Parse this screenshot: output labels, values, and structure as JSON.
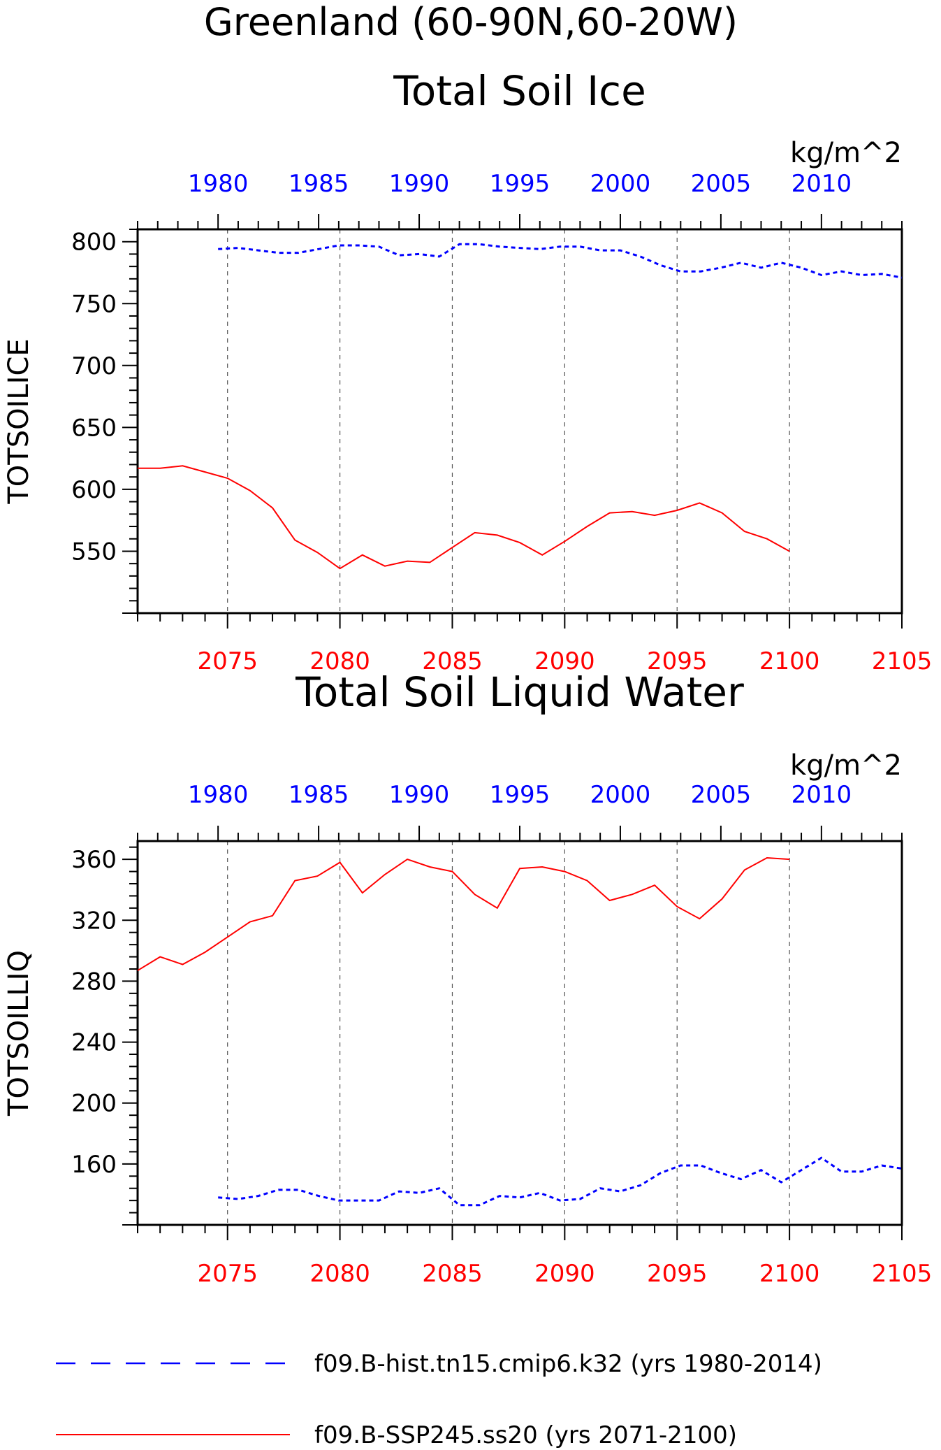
{
  "figure": {
    "title": "Greenland (60-90N,60-20W)",
    "legend": [
      {
        "label": "f09.B-hist.tn15.cmip6.k32 (yrs 1980-2014)",
        "color": "#0000ff",
        "style": "dashed"
      },
      {
        "label": "f09.B-SSP245.ss20 (yrs 2071-2100)",
        "color": "#ff0000",
        "style": "solid"
      }
    ]
  },
  "chart_data": [
    {
      "type": "line",
      "title": "Total Soil Ice",
      "units": "kg/m^2",
      "ylabel": "TOTSOILICE",
      "ylim": [
        500,
        810
      ],
      "yticks": [
        550,
        600,
        650,
        700,
        750,
        800
      ],
      "top_axis": {
        "color": "#0000ff",
        "range": [
          1976,
          2014
        ],
        "ticks": [
          1980,
          1985,
          1990,
          1995,
          2000,
          2005,
          2010
        ]
      },
      "bottom_axis": {
        "color": "#ff0000",
        "range": [
          2071,
          2105
        ],
        "ticks": [
          2075,
          2080,
          2085,
          2090,
          2095,
          2100,
          2105
        ]
      },
      "grid": "vertical dashed at bottom-axis ticks",
      "series": [
        {
          "name": "f09.B-hist.tn15.cmip6.k32 (yrs 1980-2014)",
          "color": "#0000ff",
          "style": "dashed",
          "axis": "top",
          "x": [
            1980,
            1981,
            1982,
            1983,
            1984,
            1985,
            1986,
            1987,
            1988,
            1989,
            1990,
            1991,
            1992,
            1993,
            1994,
            1995,
            1996,
            1997,
            1998,
            1999,
            2000,
            2001,
            2002,
            2003,
            2004,
            2005,
            2006,
            2007,
            2008,
            2009,
            2010,
            2011,
            2012,
            2013,
            2014
          ],
          "values": [
            794,
            795,
            793,
            791,
            791,
            794,
            797,
            797,
            796,
            789,
            790,
            788,
            798,
            798,
            796,
            795,
            794,
            796,
            796,
            793,
            793,
            788,
            781,
            776,
            776,
            779,
            783,
            779,
            783,
            779,
            773,
            776,
            773,
            774,
            771
          ]
        },
        {
          "name": "f09.B-SSP245.ss20 (yrs 2071-2100)",
          "color": "#ff0000",
          "style": "solid",
          "axis": "bottom",
          "x": [
            2071,
            2072,
            2073,
            2074,
            2075,
            2076,
            2077,
            2078,
            2079,
            2080,
            2081,
            2082,
            2083,
            2084,
            2085,
            2086,
            2087,
            2088,
            2089,
            2090,
            2091,
            2092,
            2093,
            2094,
            2095,
            2096,
            2097,
            2098,
            2099,
            2100
          ],
          "values": [
            617,
            617,
            619,
            614,
            609,
            599,
            585,
            559,
            549,
            536,
            547,
            538,
            542,
            541,
            553,
            565,
            563,
            557,
            547,
            558,
            570,
            581,
            582,
            579,
            583,
            589,
            581,
            566,
            560,
            550
          ]
        }
      ]
    },
    {
      "type": "line",
      "title": "Total Soil Liquid Water",
      "units": "kg/m^2",
      "ylabel": "TOTSOILLIQ",
      "ylim": [
        120,
        372
      ],
      "yticks": [
        160,
        200,
        240,
        280,
        320,
        360
      ],
      "top_axis": {
        "color": "#0000ff",
        "range": [
          1976,
          2014
        ],
        "ticks": [
          1980,
          1985,
          1990,
          1995,
          2000,
          2005,
          2010
        ]
      },
      "bottom_axis": {
        "color": "#ff0000",
        "range": [
          2071,
          2105
        ],
        "ticks": [
          2075,
          2080,
          2085,
          2090,
          2095,
          2100,
          2105
        ]
      },
      "grid": "vertical dashed at bottom-axis ticks",
      "series": [
        {
          "name": "f09.B-hist.tn15.cmip6.k32 (yrs 1980-2014)",
          "color": "#0000ff",
          "style": "dashed",
          "axis": "top",
          "x": [
            1980,
            1981,
            1982,
            1983,
            1984,
            1985,
            1986,
            1987,
            1988,
            1989,
            1990,
            1991,
            1992,
            1993,
            1994,
            1995,
            1996,
            1997,
            1998,
            1999,
            2000,
            2001,
            2002,
            2003,
            2004,
            2005,
            2006,
            2007,
            2008,
            2009,
            2010,
            2011,
            2012,
            2013,
            2014
          ],
          "values": [
            138,
            137,
            139,
            143,
            143,
            139,
            136,
            136,
            136,
            142,
            141,
            144,
            133,
            133,
            139,
            138,
            141,
            136,
            137,
            144,
            142,
            146,
            154,
            159,
            159,
            154,
            150,
            156,
            148,
            156,
            164,
            155,
            155,
            159,
            157
          ]
        },
        {
          "name": "f09.B-SSP245.ss20 (yrs 2071-2100)",
          "color": "#ff0000",
          "style": "solid",
          "axis": "bottom",
          "x": [
            2071,
            2072,
            2073,
            2074,
            2075,
            2076,
            2077,
            2078,
            2079,
            2080,
            2081,
            2082,
            2083,
            2084,
            2085,
            2086,
            2087,
            2088,
            2089,
            2090,
            2091,
            2092,
            2093,
            2094,
            2095,
            2096,
            2097,
            2098,
            2099,
            2100
          ],
          "values": [
            287,
            296,
            291,
            299,
            309,
            319,
            323,
            346,
            349,
            358,
            338,
            350,
            360,
            355,
            352,
            337,
            328,
            354,
            355,
            352,
            346,
            333,
            337,
            343,
            329,
            321,
            334,
            353,
            361,
            360
          ]
        }
      ]
    }
  ]
}
